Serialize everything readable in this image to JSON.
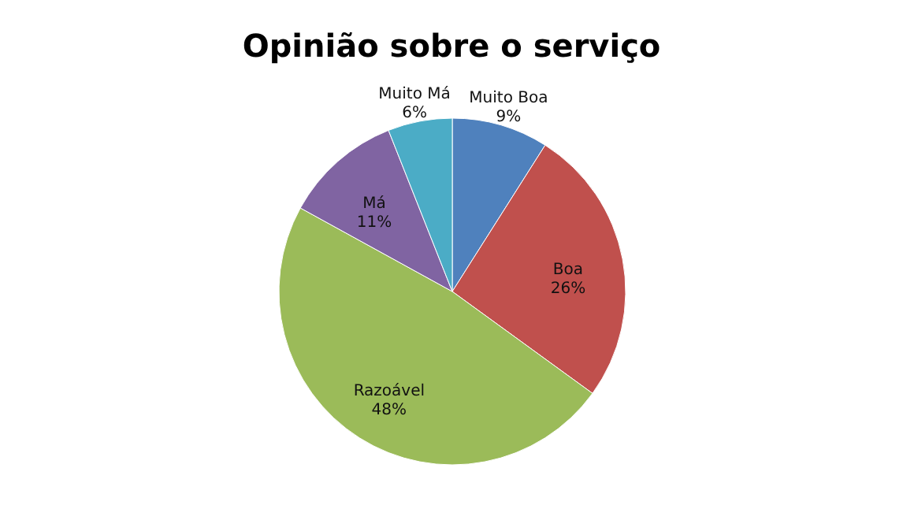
{
  "chart_data": {
    "type": "pie",
    "title": "Opinião sobre o serviço",
    "categories": [
      "Muito Boa",
      "Boa",
      "Razoável",
      "Má",
      "Muito Má"
    ],
    "values": [
      9,
      26,
      48,
      11,
      6
    ],
    "value_labels": [
      "9%",
      "26%",
      "48%",
      "11%",
      "6%"
    ],
    "colors": [
      "#4f81bd",
      "#c0504d",
      "#9bbb59",
      "#8064a2",
      "#4bacc6"
    ],
    "legend": false
  }
}
